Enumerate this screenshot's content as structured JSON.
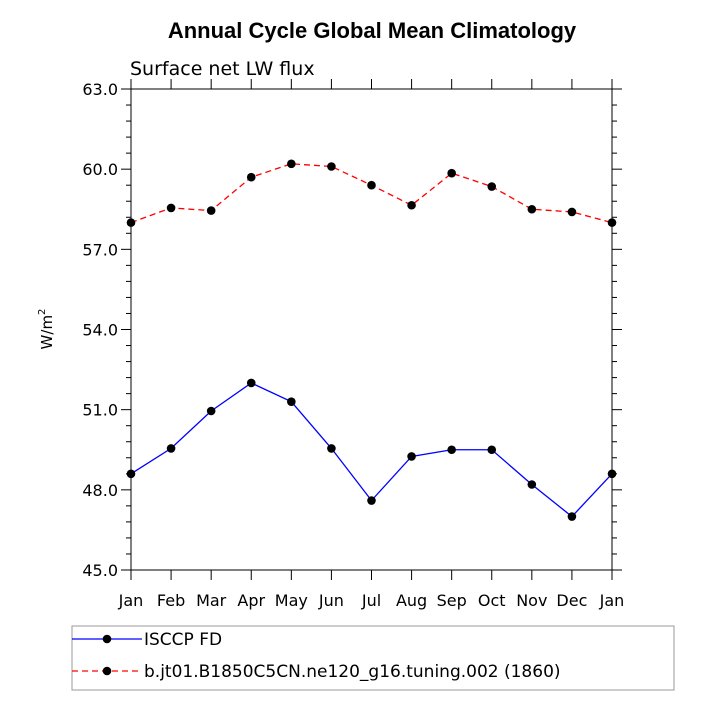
{
  "chart_data": {
    "type": "line",
    "title": "Annual Cycle Global Mean Climatology",
    "subtitle": "Surface net LW flux",
    "ylabel": "W/m",
    "ylabel_superscript": "2",
    "categories": [
      "Jan",
      "Feb",
      "Mar",
      "Apr",
      "May",
      "Jun",
      "Jul",
      "Aug",
      "Sep",
      "Oct",
      "Nov",
      "Dec",
      "Jan"
    ],
    "ylim": [
      45.0,
      63.0
    ],
    "yticks": [
      "45.0",
      "48.0",
      "51.0",
      "54.0",
      "57.0",
      "60.0",
      "63.0"
    ],
    "grid": false,
    "legend_position": "bottom",
    "series": [
      {
        "name": "ISCCP FD",
        "color": "#0000ff",
        "dash": "solid",
        "values": [
          48.6,
          49.55,
          50.95,
          52.0,
          51.3,
          49.55,
          47.6,
          49.25,
          49.5,
          49.5,
          48.2,
          47.0,
          48.6
        ]
      },
      {
        "name": "b.jt01.B1850C5CN.ne120_g16.tuning.002 (1860)",
        "color": "#ff0000",
        "dash": "dashed",
        "values": [
          58.0,
          58.55,
          58.45,
          59.7,
          60.2,
          60.1,
          59.4,
          58.65,
          59.85,
          59.35,
          58.5,
          58.4,
          58.0
        ]
      }
    ]
  }
}
